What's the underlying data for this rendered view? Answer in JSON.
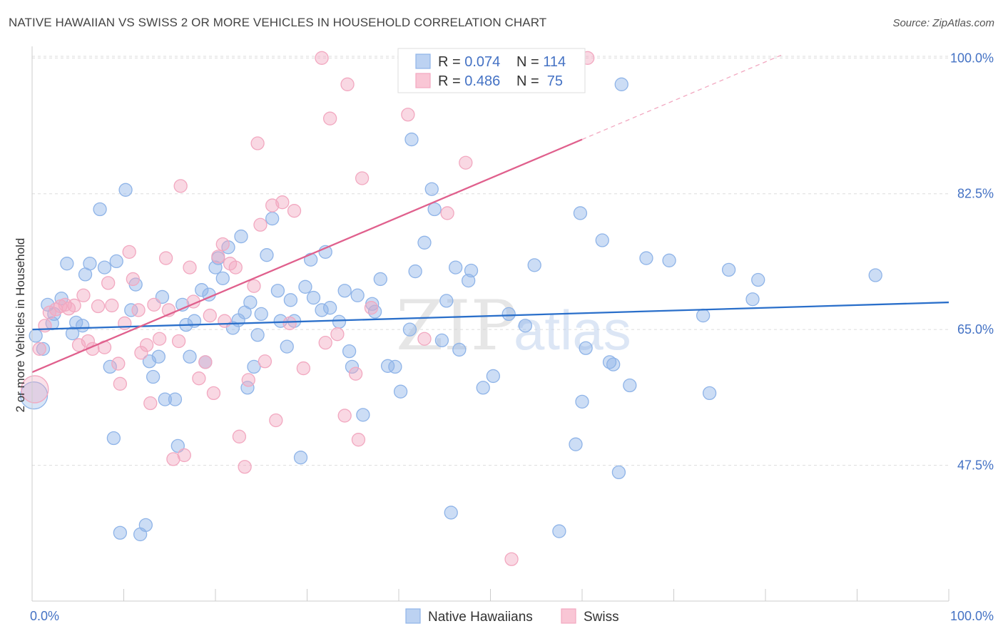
{
  "title": "NATIVE HAWAIIAN VS SWISS 2 OR MORE VEHICLES IN HOUSEHOLD CORRELATION CHART",
  "source": "Source: ZipAtlas.com",
  "watermark": {
    "zip": "ZIP",
    "atlas": "atlas"
  },
  "legend_box": {
    "rows": [
      {
        "r_label": "R = ",
        "r_value": "0.074",
        "n_label": "N = ",
        "n_value": "114"
      },
      {
        "r_label": "R = ",
        "r_value": "0.486",
        "n_label": "N = ",
        "n_value": " 75"
      }
    ]
  },
  "chart_data": {
    "type": "scatter",
    "title": "NATIVE HAWAIIAN VS SWISS 2 OR MORE VEHICLES IN HOUSEHOLD CORRELATION CHART",
    "xlabel": "",
    "ylabel": "2 or more Vehicles in Household",
    "xlim": [
      0,
      100
    ],
    "ylim": [
      30,
      101.5
    ],
    "x_tick_labels": [
      "0.0%",
      "100.0%"
    ],
    "y_ticks": [
      47.5,
      65.0,
      82.5,
      100.0
    ],
    "y_tick_labels": [
      "47.5%",
      "65.0%",
      "82.5%",
      "100.0%"
    ],
    "grid": true,
    "legend_position": "bottom",
    "series": [
      {
        "name": "Native Hawaiians",
        "color": "#8fb4e8",
        "line_color": "#2a6fca",
        "R": 0.074,
        "N": 114,
        "trend": {
          "x": [
            0,
            100
          ],
          "y": [
            65.0,
            68.5
          ]
        },
        "points": [
          [
            0.2,
            56.5
          ],
          [
            0.4,
            64.2
          ],
          [
            1.2,
            62.5
          ],
          [
            1.7,
            68.2
          ],
          [
            2.4,
            67.0
          ],
          [
            2.2,
            65.8
          ],
          [
            3.2,
            69.0
          ],
          [
            3.8,
            73.5
          ],
          [
            4.4,
            64.5
          ],
          [
            4.8,
            65.9
          ],
          [
            5.5,
            65.5
          ],
          [
            5.8,
            72.1
          ],
          [
            6.3,
            73.5
          ],
          [
            7.4,
            80.5
          ],
          [
            7.9,
            73.0
          ],
          [
            8.5,
            60.2
          ],
          [
            8.9,
            51.0
          ],
          [
            9.2,
            73.8
          ],
          [
            9.6,
            38.8
          ],
          [
            10.2,
            83.0
          ],
          [
            10.8,
            67.5
          ],
          [
            11.3,
            70.8
          ],
          [
            11.8,
            38.6
          ],
          [
            12.4,
            39.8
          ],
          [
            12.8,
            60.9
          ],
          [
            13.2,
            58.9
          ],
          [
            13.8,
            61.5
          ],
          [
            14.2,
            69.2
          ],
          [
            14.5,
            56.0
          ],
          [
            15.6,
            56.0
          ],
          [
            15.9,
            50.0
          ],
          [
            16.4,
            68.2
          ],
          [
            16.8,
            65.6
          ],
          [
            17.2,
            61.5
          ],
          [
            17.7,
            66.1
          ],
          [
            18.5,
            70.1
          ],
          [
            18.9,
            60.8
          ],
          [
            19.3,
            69.5
          ],
          [
            20.0,
            73.0
          ],
          [
            20.3,
            74.2
          ],
          [
            20.8,
            71.6
          ],
          [
            21.4,
            75.6
          ],
          [
            21.9,
            65.2
          ],
          [
            22.5,
            66.2
          ],
          [
            22.8,
            77.0
          ],
          [
            23.2,
            67.2
          ],
          [
            23.5,
            57.5
          ],
          [
            23.8,
            68.5
          ],
          [
            24.2,
            60.2
          ],
          [
            24.6,
            64.3
          ],
          [
            25.0,
            67.0
          ],
          [
            25.6,
            74.6
          ],
          [
            26.2,
            79.3
          ],
          [
            26.8,
            70.0
          ],
          [
            27.1,
            66.1
          ],
          [
            27.8,
            62.8
          ],
          [
            28.2,
            68.8
          ],
          [
            28.6,
            66.1
          ],
          [
            29.3,
            48.5
          ],
          [
            29.8,
            70.5
          ],
          [
            30.4,
            74.0
          ],
          [
            30.7,
            69.1
          ],
          [
            31.6,
            67.5
          ],
          [
            32.0,
            75.0
          ],
          [
            32.5,
            67.8
          ],
          [
            33.5,
            66.0
          ],
          [
            34.1,
            70.0
          ],
          [
            34.6,
            62.2
          ],
          [
            34.9,
            60.2
          ],
          [
            35.5,
            69.4
          ],
          [
            36.1,
            54.0
          ],
          [
            37.1,
            68.3
          ],
          [
            37.4,
            67.3
          ],
          [
            38.0,
            71.5
          ],
          [
            38.8,
            60.3
          ],
          [
            39.6,
            60.2
          ],
          [
            40.2,
            57.0
          ],
          [
            41.2,
            65.0
          ],
          [
            41.4,
            89.5
          ],
          [
            41.8,
            72.5
          ],
          [
            42.8,
            76.2
          ],
          [
            43.6,
            83.1
          ],
          [
            43.9,
            80.5
          ],
          [
            44.7,
            63.6
          ],
          [
            45.2,
            68.7
          ],
          [
            45.7,
            41.4
          ],
          [
            46.2,
            73.0
          ],
          [
            46.6,
            62.4
          ],
          [
            47.6,
            71.3
          ],
          [
            47.9,
            72.6
          ],
          [
            49.2,
            57.5
          ],
          [
            50.3,
            59.0
          ],
          [
            52.0,
            67.0
          ],
          [
            53.8,
            65.5
          ],
          [
            54.8,
            73.3
          ],
          [
            57.5,
            39.0
          ],
          [
            59.3,
            50.2
          ],
          [
            59.8,
            80.0
          ],
          [
            60.0,
            55.7
          ],
          [
            60.4,
            62.6
          ],
          [
            62.2,
            76.5
          ],
          [
            63.0,
            60.8
          ],
          [
            63.4,
            60.5
          ],
          [
            64.0,
            46.6
          ],
          [
            64.3,
            96.6
          ],
          [
            65.2,
            57.8
          ],
          [
            67.0,
            74.2
          ],
          [
            69.5,
            73.9
          ],
          [
            73.2,
            66.8
          ],
          [
            73.9,
            56.8
          ],
          [
            76.0,
            72.7
          ],
          [
            78.6,
            68.9
          ],
          [
            79.2,
            71.4
          ],
          [
            92.0,
            72.0
          ]
        ]
      },
      {
        "name": "Swiss",
        "color": "#f2a8c0",
        "line_color": "#e0608d",
        "R": 0.486,
        "N": 75,
        "trend": {
          "x": [
            0,
            60
          ],
          "y": [
            59.5,
            89.5
          ],
          "dashed_to": {
            "x": 82,
            "y": 100.5
          }
        },
        "points": [
          [
            0.3,
            57.3
          ],
          [
            0.8,
            62.5
          ],
          [
            1.4,
            65.5
          ],
          [
            1.9,
            67.2
          ],
          [
            2.6,
            67.6
          ],
          [
            3.1,
            68.0
          ],
          [
            3.6,
            68.2
          ],
          [
            4.0,
            67.7
          ],
          [
            4.6,
            68.1
          ],
          [
            5.1,
            63.0
          ],
          [
            5.6,
            69.4
          ],
          [
            6.1,
            63.5
          ],
          [
            6.6,
            62.5
          ],
          [
            7.2,
            68.0
          ],
          [
            7.9,
            62.7
          ],
          [
            8.3,
            71.0
          ],
          [
            8.7,
            68.1
          ],
          [
            9.4,
            60.6
          ],
          [
            9.6,
            58.0
          ],
          [
            10.1,
            65.8
          ],
          [
            10.6,
            75.0
          ],
          [
            11.0,
            71.5
          ],
          [
            11.6,
            67.5
          ],
          [
            11.9,
            62.0
          ],
          [
            12.5,
            63.0
          ],
          [
            12.9,
            55.5
          ],
          [
            13.3,
            68.2
          ],
          [
            13.9,
            63.8
          ],
          [
            14.6,
            74.2
          ],
          [
            14.9,
            67.5
          ],
          [
            15.4,
            48.3
          ],
          [
            16.0,
            63.5
          ],
          [
            16.2,
            83.5
          ],
          [
            16.6,
            48.8
          ],
          [
            17.2,
            73.0
          ],
          [
            17.6,
            68.6
          ],
          [
            18.2,
            58.7
          ],
          [
            18.9,
            60.8
          ],
          [
            19.4,
            66.8
          ],
          [
            19.8,
            56.8
          ],
          [
            20.3,
            74.4
          ],
          [
            20.8,
            76.0
          ],
          [
            21.0,
            66.1
          ],
          [
            21.6,
            73.5
          ],
          [
            22.2,
            73.0
          ],
          [
            22.6,
            51.2
          ],
          [
            23.2,
            47.3
          ],
          [
            23.6,
            58.5
          ],
          [
            24.2,
            70.6
          ],
          [
            24.6,
            89.0
          ],
          [
            24.9,
            78.5
          ],
          [
            25.4,
            60.9
          ],
          [
            26.2,
            81.0
          ],
          [
            26.6,
            53.3
          ],
          [
            27.3,
            81.4
          ],
          [
            28.1,
            65.8
          ],
          [
            28.6,
            80.3
          ],
          [
            29.6,
            60.0
          ],
          [
            31.6,
            100.0
          ],
          [
            32.0,
            63.3
          ],
          [
            32.5,
            92.2
          ],
          [
            33.3,
            64.4
          ],
          [
            34.1,
            53.9
          ],
          [
            34.4,
            96.6
          ],
          [
            35.3,
            59.3
          ],
          [
            35.6,
            50.8
          ],
          [
            36.0,
            84.5
          ],
          [
            37.0,
            67.8
          ],
          [
            41.0,
            92.7
          ],
          [
            42.8,
            63.8
          ],
          [
            45.3,
            80.0
          ],
          [
            47.3,
            86.5
          ],
          [
            52.0,
            100.0
          ],
          [
            52.3,
            35.4
          ],
          [
            60.6,
            100.0
          ]
        ]
      }
    ]
  }
}
